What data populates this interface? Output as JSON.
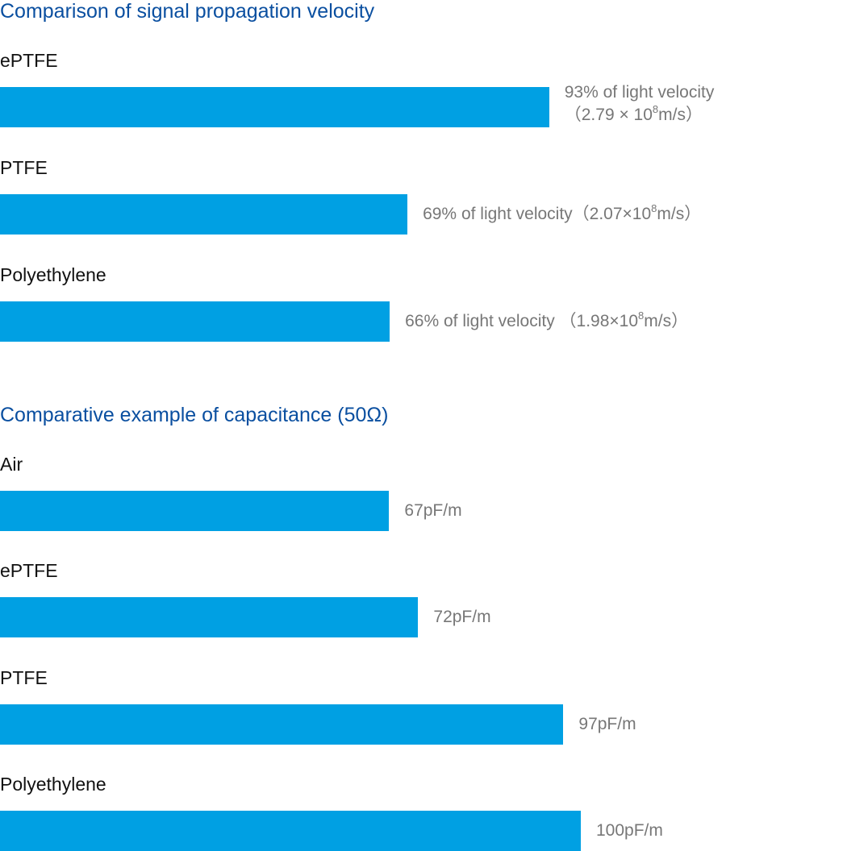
{
  "colors": {
    "bar": "#00a0e3",
    "title": "#0a4fa0",
    "value": "#777777"
  },
  "chart_data": [
    {
      "type": "bar",
      "orientation": "horizontal",
      "title": "Comparison of signal propagation velocity",
      "unit": "% of light velocity",
      "categories": [
        "ePTFE",
        "PTFE",
        "Polyethylene"
      ],
      "values": [
        93,
        69,
        66
      ],
      "labels": [
        {
          "line1": "93% of light velocity",
          "pre": "（2.79 × 10",
          "sup": "8",
          "post": "m/s）"
        },
        {
          "line1": "",
          "pre": "69% of light velocity（2.07×10",
          "sup": "8",
          "post": "m/s）"
        },
        {
          "line1": "",
          "pre": "66% of light velocity （1.98×10",
          "sup": "8",
          "post": "m/s）"
        }
      ],
      "xlim": [
        0,
        100
      ]
    },
    {
      "type": "bar",
      "orientation": "horizontal",
      "title": "Comparative example of capacitance (50Ω)",
      "unit": "pF/m",
      "categories": [
        "Air",
        "ePTFE",
        "PTFE",
        "Polyethylene"
      ],
      "values": [
        67,
        72,
        97,
        100
      ],
      "labels": [
        {
          "line1": "",
          "pre": "67pF/m",
          "sup": "",
          "post": ""
        },
        {
          "line1": "",
          "pre": "72pF/m",
          "sup": "",
          "post": ""
        },
        {
          "line1": "",
          "pre": "97pF/m",
          "sup": "",
          "post": ""
        },
        {
          "line1": "",
          "pre": "100pF/m",
          "sup": "",
          "post": ""
        }
      ],
      "xlim": [
        0,
        100
      ]
    }
  ]
}
